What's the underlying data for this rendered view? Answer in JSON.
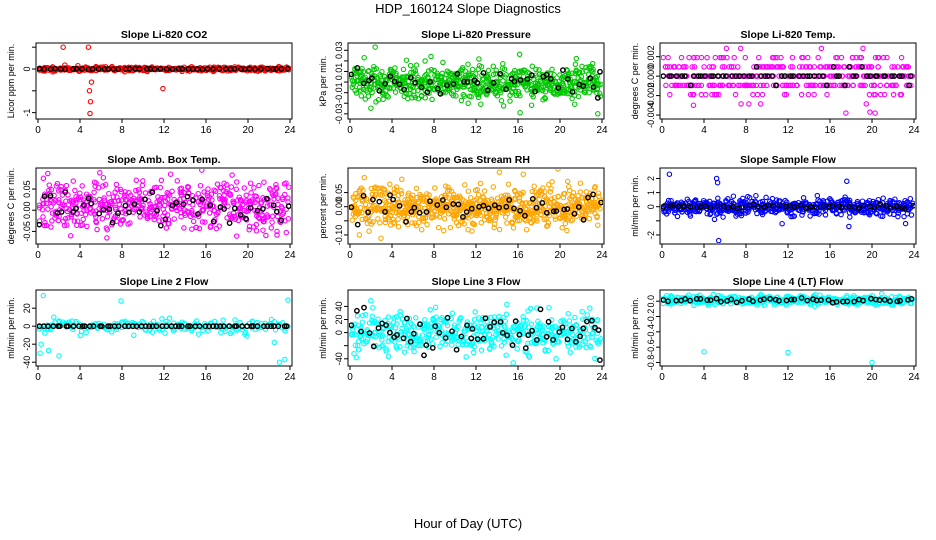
{
  "figure": {
    "title": "HDP_160124  Slope Diagnostics",
    "xlabel": "Hour of Day (UTC)"
  },
  "chart_data": [
    {
      "type": "scatter",
      "title": "Slope Li-820 CO2",
      "ylabel": "Licor ppm per min.",
      "xlim": [
        0,
        24
      ],
      "xticks": [
        0,
        4,
        8,
        12,
        16,
        20,
        24
      ],
      "ylim": [
        -1.1,
        0.55
      ],
      "yticks": [
        -1,
        -0.5,
        0,
        0.5
      ],
      "yticklabels": [
        "-1",
        "",
        "0",
        ""
      ],
      "color": "#ff0000",
      "series": [
        {
          "name": "colored",
          "gen": {
            "n": 380,
            "center": 0,
            "spread": 0.025,
            "seed": 11
          },
          "x": [
            2.4,
            4.8,
            4.9,
            5.0,
            4.95,
            11.9,
            5.1
          ],
          "y": [
            0.5,
            0.5,
            -0.5,
            -0.75,
            -1.02,
            -0.45,
            -0.3
          ]
        },
        {
          "name": "black",
          "gen": {
            "n": 48,
            "center": 0,
            "spread": 0.005,
            "seed": 12
          },
          "x": [],
          "y": []
        }
      ]
    },
    {
      "type": "scatter",
      "title": "Slope Li-820 Pressure",
      "ylabel": "kPa per min.",
      "xlim": [
        0,
        24
      ],
      "xticks": [
        0,
        4,
        8,
        12,
        16,
        20,
        24
      ],
      "ylim": [
        -0.033,
        0.035
      ],
      "yticks": [
        -0.03,
        -0.02,
        -0.01,
        0,
        0.01,
        0.02,
        0.03
      ],
      "yticklabels": [
        "-0.03",
        "",
        "-0.01",
        "",
        "0.01",
        "",
        "0.03"
      ],
      "color": "#00c800",
      "series": [
        {
          "name": "colored",
          "gen": {
            "n": 650,
            "center": 0,
            "spread": 0.008,
            "seed": 21
          },
          "x": [
            2.4,
            23.6,
            16.2
          ],
          "y": [
            0.033,
            -0.03,
            -0.029
          ]
        },
        {
          "name": "black",
          "gen": {
            "n": 48,
            "center": 0,
            "spread": 0.006,
            "seed": 22
          },
          "x": [
            23.6
          ],
          "y": [
            -0.015
          ]
        }
      ]
    },
    {
      "type": "scatter",
      "title": "Slope Li-820 Temp.",
      "ylabel": "degrees C per min.",
      "xlim": [
        0,
        24
      ],
      "xticks": [
        0,
        4,
        8,
        12,
        16,
        20,
        24
      ],
      "ylim": [
        -0.0042,
        0.0032
      ],
      "yticks": [
        -0.004,
        -0.002,
        0,
        0.002
      ],
      "yticklabels": [
        "-0.004",
        "-0.002",
        "0.000",
        "0.002"
      ],
      "color": "#ff00ff",
      "series": [
        {
          "name": "colored",
          "gen": {
            "n": 420,
            "center": 0,
            "spread": 0.0011,
            "seed": 31,
            "quantize": 0.00095
          },
          "x": [
            19.8,
            20.3,
            3.0
          ],
          "y": [
            -0.0037,
            -0.0038,
            -0.003
          ]
        },
        {
          "name": "black",
          "gen": {
            "n": 60,
            "center": 0,
            "spread": 0.0004,
            "seed": 32,
            "quantize": 0.00095
          },
          "x": [],
          "y": []
        }
      ]
    },
    {
      "type": "scatter",
      "title": "Slope Amb. Box Temp.",
      "ylabel": "degrees C per min.",
      "xlim": [
        0,
        24
      ],
      "xticks": [
        0,
        4,
        8,
        12,
        16,
        20,
        24
      ],
      "ylim": [
        -0.075,
        0.095
      ],
      "yticks": [
        -0.05,
        0,
        0.05
      ],
      "yticklabels": [
        "-0.05",
        "0.00",
        "0.05"
      ],
      "color": "#ff00ff",
      "series": [
        {
          "name": "colored",
          "gen": {
            "n": 520,
            "center": 0.01,
            "spread": 0.03,
            "seed": 41
          },
          "x": [],
          "y": []
        },
        {
          "name": "black",
          "gen": {
            "n": 48,
            "center": 0.005,
            "spread": 0.02,
            "seed": 42
          },
          "x": [],
          "y": []
        }
      ]
    },
    {
      "type": "scatter",
      "title": "Slope Gas Stream RH",
      "ylabel": "percent per min.",
      "xlim": [
        0,
        24
      ],
      "xticks": [
        0,
        4,
        8,
        12,
        16,
        20,
        24
      ],
      "ylim": [
        -0.125,
        0.13
      ],
      "yticks": [
        -0.1,
        -0.05,
        0,
        0.05
      ],
      "yticklabels": [
        "-0.10",
        "",
        "0.00",
        "0.05"
      ],
      "color": "#ffa500",
      "series": [
        {
          "name": "colored",
          "gen": {
            "n": 700,
            "center": 0,
            "spread": 0.035,
            "seed": 51
          },
          "x": [
            16.5,
            0.9,
            20.5
          ],
          "y": [
            0.115,
            -0.1,
            -0.06
          ]
        },
        {
          "name": "black",
          "gen": {
            "n": 48,
            "center": 0,
            "spread": 0.025,
            "seed": 52
          },
          "x": [],
          "y": []
        }
      ]
    },
    {
      "type": "scatter",
      "title": "Slope Sample Flow",
      "ylabel": "ml/min per min.",
      "xlim": [
        0,
        24
      ],
      "xticks": [
        0,
        4,
        8,
        12,
        16,
        20,
        24
      ],
      "ylim": [
        -2.5,
        2.6
      ],
      "yticks": [
        -2,
        -1,
        0,
        1,
        2
      ],
      "yticklabels": [
        "-2",
        "",
        "0",
        "1",
        "2"
      ],
      "color": "#0000ff",
      "series": [
        {
          "name": "colored",
          "gen": {
            "n": 560,
            "center": 0,
            "spread": 0.3,
            "seed": 61
          },
          "x": [
            0.7,
            5.2,
            5.4,
            5.3,
            17.6,
            17.8,
            5.0,
            23.2
          ],
          "y": [
            2.3,
            2.0,
            -2.4,
            1.7,
            1.8,
            -1.4,
            -0.9,
            -1.2
          ]
        },
        {
          "name": "black",
          "gen": {
            "n": 48,
            "center": 0,
            "spread": 0.08,
            "seed": 62
          },
          "x": [],
          "y": []
        }
      ]
    },
    {
      "type": "scatter",
      "title": "Slope Line 2 Flow",
      "ylabel": "ml/min per min.",
      "xlim": [
        0,
        24
      ],
      "xticks": [
        0,
        4,
        8,
        12,
        16,
        20,
        24
      ],
      "ylim": [
        -42,
        38
      ],
      "yticks": [
        -40,
        -20,
        0,
        20
      ],
      "yticklabels": [
        "-40",
        "-20",
        "0",
        "20"
      ],
      "color": "#00ffff",
      "series": [
        {
          "name": "colored",
          "gen": {
            "n": 180,
            "center": 0,
            "spread": 4,
            "seed": 71
          },
          "x": [
            0.5,
            0.3,
            1.0,
            2.0,
            7.9,
            23.0,
            23.5,
            23.8,
            22.5,
            0.2,
            1.5
          ],
          "y": [
            34,
            -20,
            -27,
            -33,
            28,
            -40,
            -37,
            29,
            -18,
            -30,
            10
          ]
        },
        {
          "name": "black",
          "gen": {
            "n": 60,
            "center": 0,
            "spread": 0,
            "seed": 72
          },
          "x": [],
          "y": []
        }
      ]
    },
    {
      "type": "scatter",
      "title": "Slope Line 3 Flow",
      "ylabel": "ml/min per min.",
      "xlim": [
        0,
        24
      ],
      "xticks": [
        0,
        4,
        8,
        12,
        16,
        20,
        24
      ],
      "ylim": [
        -48,
        62
      ],
      "yticks": [
        -40,
        -20,
        0,
        20,
        40
      ],
      "yticklabels": [
        "-40",
        "",
        "0",
        "20",
        "40"
      ],
      "color": "#00ffff",
      "series": [
        {
          "name": "colored",
          "gen": {
            "n": 480,
            "center": 0,
            "spread": 16,
            "seed": 81
          },
          "x": [],
          "y": []
        },
        {
          "name": "black",
          "gen": {
            "n": 60,
            "center": 0,
            "spread": 14,
            "seed": 82
          },
          "x": [
            23.8
          ],
          "y": [
            -42
          ]
        }
      ]
    },
    {
      "type": "scatter",
      "title": "Slope Line 4 (LT) Flow",
      "ylabel": "ml/min per min.",
      "xlim": [
        0,
        24
      ],
      "xticks": [
        0,
        4,
        8,
        12,
        16,
        20,
        24
      ],
      "ylim": [
        -0.82,
        0.12
      ],
      "yticks": [
        -0.8,
        -0.6,
        -0.4,
        -0.2,
        0
      ],
      "yticklabels": [
        "-0.8",
        "-0.6",
        "-0.4",
        "-0.2",
        "0.0"
      ],
      "color": "#00ffff",
      "series": [
        {
          "name": "colored",
          "gen": {
            "n": 420,
            "center": 0.01,
            "spread": 0.03,
            "seed": 91
          },
          "x": [
            4.0,
            12.0,
            20.0
          ],
          "y": [
            -0.66,
            -0.67,
            -0.8
          ]
        },
        {
          "name": "black",
          "gen": {
            "n": 48,
            "center": 0.01,
            "spread": 0.015,
            "seed": 92
          },
          "x": [],
          "y": []
        }
      ]
    }
  ]
}
